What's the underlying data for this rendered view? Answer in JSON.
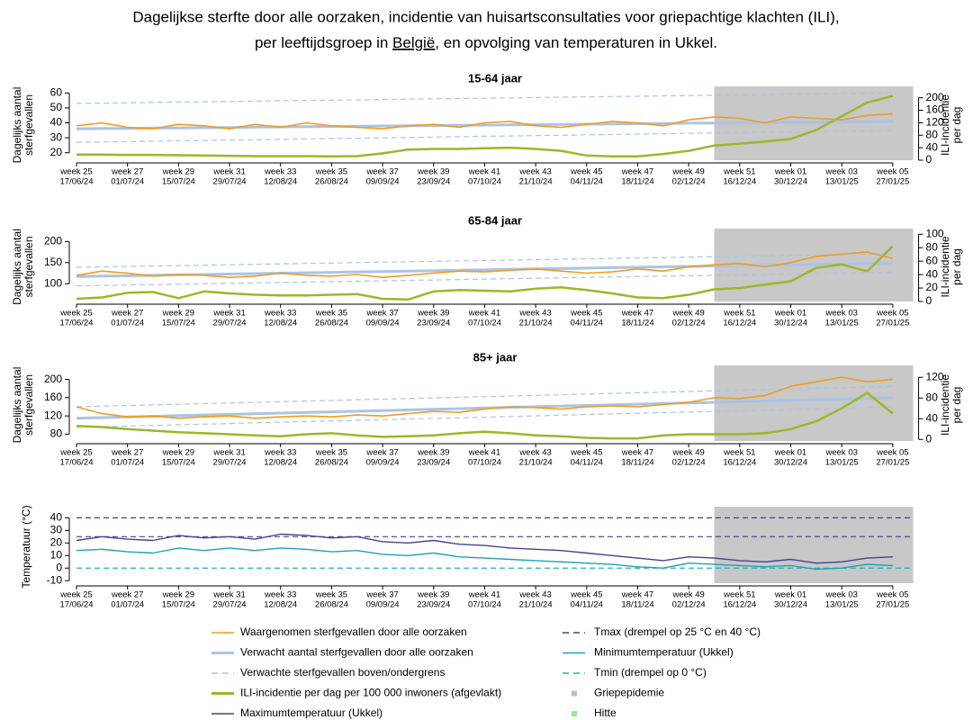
{
  "title_line1": "Dagelijkse sterfte door alle oorzaken, incidentie van huisartsconsultaties voor griepachtige klachten (ILI),",
  "title_line2": {
    "before": "per leeftijdsgroep in ",
    "link": "België",
    "after": ", en opvolging van temperaturen in Ukkel."
  },
  "epidemic_start_index": 25,
  "epidemic_color": "#c8c8c8",
  "chart_data": [
    {
      "type": "line",
      "title": "15-64 jaar",
      "ylabel": [
        "Dagelijks aantal",
        "sterfgevallen"
      ],
      "y2label": [
        "ILI-incidentie",
        "per dag"
      ],
      "categories": [
        "week 25",
        null,
        "week 27",
        null,
        "week 29",
        null,
        "week 31",
        null,
        "week 33",
        null,
        "week 35",
        null,
        "week 37",
        null,
        "week 39",
        null,
        "week 41",
        null,
        "week 43",
        null,
        "week 45",
        null,
        "week 47",
        null,
        "week 49",
        null,
        "week 51",
        null,
        "week 01",
        null,
        "week 03",
        null,
        "week 05"
      ],
      "dates": [
        "17/06/24",
        null,
        "01/07/24",
        null,
        "15/07/24",
        null,
        "29/07/24",
        null,
        "12/08/24",
        null,
        "26/08/24",
        null,
        "09/09/24",
        null,
        "23/09/24",
        null,
        "07/10/24",
        null,
        "21/10/24",
        null,
        "04/11/24",
        null,
        "18/11/24",
        null,
        "02/12/24",
        null,
        "16/12/24",
        null,
        "30/12/24",
        null,
        "13/01/25",
        null,
        "27/01/25"
      ],
      "ylim": [
        15,
        62
      ],
      "yticks": [
        20,
        30,
        40,
        50,
        60
      ],
      "y2lim": [
        0,
        225
      ],
      "y2ticks": [
        0,
        40,
        80,
        120,
        160,
        200
      ],
      "series": [
        {
          "color": "#a9c4e6",
          "dash": true,
          "values": [
            53,
            53.2,
            53.4,
            53.7,
            53.9,
            54.1,
            54.3,
            54.5,
            54.8,
            55,
            55.2,
            55.4,
            55.6,
            55.9,
            56.1,
            56.3,
            56.5,
            56.7,
            57,
            57.2,
            57.4,
            57.6,
            57.8,
            58.1,
            58.3,
            58.5,
            58.7,
            58.9,
            59.2,
            59.4,
            59.6,
            59.8,
            60
          ]
        },
        {
          "color": "#a9c4e6",
          "dash": true,
          "values": [
            27,
            27.2,
            27.5,
            27.7,
            28,
            28.2,
            28.5,
            28.7,
            29,
            29.2,
            29.5,
            29.7,
            30,
            30.2,
            30.5,
            30.7,
            31,
            31.2,
            31.5,
            31.7,
            32,
            32.2,
            32.5,
            32.7,
            33,
            33.2,
            33.5,
            33.7,
            34,
            34.2,
            34.5,
            34.7,
            35
          ]
        },
        {
          "color": "#a9c4e6",
          "width": 3,
          "values": [
            36,
            36.2,
            36.3,
            36.5,
            36.6,
            36.8,
            36.9,
            37.1,
            37.3,
            37.4,
            37.6,
            37.7,
            37.9,
            38,
            38.2,
            38.3,
            38.5,
            38.7,
            38.8,
            39,
            39.1,
            39.3,
            39.4,
            39.6,
            39.8,
            39.9,
            40.1,
            40.2,
            40.4,
            40.5,
            40.7,
            40.8,
            41
          ]
        },
        {
          "color": "#99b927",
          "width": 2.5,
          "axis": "y2",
          "values": [
            18,
            18,
            17,
            17,
            16,
            15,
            14,
            13,
            13,
            13,
            12,
            13,
            22,
            34,
            36,
            36,
            38,
            40,
            36,
            30,
            15,
            12,
            12,
            20,
            30,
            47,
            53,
            60,
            68,
            97,
            141,
            185,
            206
          ]
        },
        {
          "color": "#f29b1d",
          "width": 1.6,
          "values": [
            38,
            40,
            37,
            36,
            39,
            38,
            36,
            39,
            37,
            40,
            38,
            37,
            36,
            38,
            39,
            37,
            40,
            41,
            38,
            37,
            39,
            41,
            40,
            38,
            42,
            44,
            43,
            40,
            44,
            43,
            42,
            45,
            46
          ]
        }
      ]
    },
    {
      "type": "line",
      "title": "65-84 jaar",
      "ylabel": [
        "Dagelijks aantal",
        "sterfgevallen"
      ],
      "y2label": [
        "ILI-incidentie",
        "per dag"
      ],
      "categories": [
        "week 25",
        null,
        "week 27",
        null,
        "week 29",
        null,
        "week 31",
        null,
        "week 33",
        null,
        "week 35",
        null,
        "week 37",
        null,
        "week 39",
        null,
        "week 41",
        null,
        "week 43",
        null,
        "week 45",
        null,
        "week 47",
        null,
        "week 49",
        null,
        "week 51",
        null,
        "week 01",
        null,
        "week 03",
        null,
        "week 05"
      ],
      "dates": [
        "17/06/24",
        null,
        "01/07/24",
        null,
        "15/07/24",
        null,
        "29/07/24",
        null,
        "12/08/24",
        null,
        "26/08/24",
        null,
        "09/09/24",
        null,
        "23/09/24",
        null,
        "07/10/24",
        null,
        "21/10/24",
        null,
        "04/11/24",
        null,
        "18/11/24",
        null,
        "02/12/24",
        null,
        "16/12/24",
        null,
        "30/12/24",
        null,
        "13/01/25",
        null,
        "27/01/25"
      ],
      "ylim": [
        58,
        222
      ],
      "yticks": [
        100,
        150,
        200
      ],
      "y2lim": [
        0,
        103
      ],
      "y2ticks": [
        0,
        20,
        40,
        60,
        80,
        100
      ],
      "series": [
        {
          "color": "#a9c4e6",
          "dash": true,
          "values": [
            139,
            140,
            141,
            142,
            143,
            144,
            145,
            146,
            147,
            148,
            149,
            150,
            151,
            152,
            153,
            154,
            155,
            156,
            157,
            158,
            159,
            160,
            161,
            162,
            163,
            164,
            165,
            166,
            167,
            168,
            169,
            170,
            171
          ]
        },
        {
          "color": "#a9c4e6",
          "dash": true,
          "values": [
            95,
            96,
            97,
            98,
            99,
            100,
            101,
            102,
            103,
            104,
            105,
            106,
            107,
            108,
            109,
            110,
            111,
            112,
            113,
            114,
            115,
            116,
            117,
            118,
            119,
            120,
            121,
            122,
            123,
            124,
            125,
            126,
            127
          ]
        },
        {
          "color": "#a9c4e6",
          "width": 3,
          "values": [
            117,
            118,
            119,
            120,
            121,
            122,
            123,
            124,
            125,
            126,
            127,
            128,
            129,
            130,
            131,
            132,
            133,
            134,
            135,
            136,
            137,
            138,
            139,
            140,
            141,
            142,
            143,
            144,
            145,
            146,
            147,
            148,
            149
          ]
        },
        {
          "color": "#99b927",
          "width": 2.5,
          "axis": "y2",
          "values": [
            4,
            6,
            13,
            14,
            5,
            15,
            12,
            10,
            9,
            9,
            10,
            11,
            4,
            3,
            15,
            17,
            16,
            15,
            19,
            21,
            17,
            12,
            6,
            5,
            10,
            18,
            20,
            25,
            30,
            50,
            55,
            45,
            82
          ]
        },
        {
          "color": "#f29b1d",
          "width": 1.6,
          "values": [
            120,
            130,
            125,
            118,
            122,
            120,
            115,
            118,
            125,
            120,
            118,
            122,
            115,
            120,
            125,
            130,
            128,
            132,
            135,
            130,
            125,
            128,
            135,
            130,
            140,
            145,
            148,
            140,
            150,
            165,
            170,
            175,
            160
          ]
        }
      ]
    },
    {
      "type": "line",
      "title": "85+ jaar",
      "ylabel": [
        "Dagelijks aantal",
        "sterfgevallen"
      ],
      "y2label": [
        "ILI-incidentie",
        "per dag"
      ],
      "categories": [
        "week 25",
        null,
        "week 27",
        null,
        "week 29",
        null,
        "week 31",
        null,
        "week 33",
        null,
        "week 35",
        null,
        "week 37",
        null,
        "week 39",
        null,
        "week 41",
        null,
        "week 43",
        null,
        "week 45",
        null,
        "week 47",
        null,
        "week 49",
        null,
        "week 51",
        null,
        "week 01",
        null,
        "week 03",
        null,
        "week 05"
      ],
      "dates": [
        "17/06/24",
        null,
        "01/07/24",
        null,
        "15/07/24",
        null,
        "29/07/24",
        null,
        "12/08/24",
        null,
        "26/08/24",
        null,
        "09/09/24",
        null,
        "23/09/24",
        null,
        "07/10/24",
        null,
        "21/10/24",
        null,
        "04/11/24",
        null,
        "18/11/24",
        null,
        "02/12/24",
        null,
        "16/12/24",
        null,
        "30/12/24",
        null,
        "13/01/25",
        null,
        "27/01/25"
      ],
      "ylim": [
        65,
        223
      ],
      "yticks": [
        80,
        120,
        160,
        200
      ],
      "y2lim": [
        -3,
        136
      ],
      "y2ticks": [
        0,
        40,
        80,
        120
      ],
      "series": [
        {
          "color": "#a9c4e6",
          "dash": true,
          "values": [
            140,
            141.4,
            142.8,
            144.2,
            145.6,
            147,
            148.4,
            149.8,
            151.2,
            152.6,
            154,
            155.4,
            156.8,
            158.2,
            159.6,
            161,
            162.4,
            163.8,
            165.2,
            166.6,
            168,
            169.4,
            170.8,
            172.2,
            173.6,
            175,
            176.4,
            177.8,
            179.2,
            180.6,
            182,
            183.4,
            184.8
          ]
        },
        {
          "color": "#a9c4e6",
          "dash": true,
          "values": [
            95,
            96.4,
            97.8,
            99.2,
            100.6,
            102,
            103.4,
            104.8,
            106.2,
            107.6,
            109,
            110.4,
            111.8,
            113.2,
            114.6,
            116,
            117.4,
            118.8,
            120.2,
            121.6,
            123,
            124.4,
            125.8,
            127.2,
            128.6,
            130,
            131.4,
            132.8,
            134.2,
            135.6,
            137,
            138.4,
            139.8
          ]
        },
        {
          "color": "#a9c4e6",
          "width": 3,
          "values": [
            115,
            116.4,
            117.8,
            119.2,
            120.6,
            122,
            123.4,
            124.8,
            126.2,
            127.6,
            129,
            130.4,
            131.8,
            133.2,
            134.6,
            136,
            137.4,
            138.8,
            140.2,
            141.6,
            143,
            144.4,
            145.8,
            147.2,
            148.6,
            150,
            151.4,
            152.8,
            154.2,
            155.6,
            157,
            158.4,
            159.8
          ]
        },
        {
          "color": "#99b927",
          "width": 2.5,
          "axis": "y2",
          "values": [
            26,
            24,
            20,
            17,
            14,
            12,
            10,
            8,
            6,
            10,
            12,
            8,
            5,
            6,
            8,
            12,
            15,
            12,
            8,
            6,
            3,
            2,
            2,
            8,
            10,
            10,
            10,
            12,
            20,
            35,
            60,
            90,
            50
          ]
        },
        {
          "color": "#f29b1d",
          "width": 1.6,
          "values": [
            140,
            125,
            118,
            120,
            115,
            118,
            120,
            115,
            118,
            120,
            118,
            122,
            120,
            125,
            130,
            128,
            135,
            140,
            138,
            135,
            140,
            142,
            140,
            145,
            150,
            160,
            158,
            165,
            185,
            195,
            205,
            195,
            200
          ]
        }
      ]
    },
    {
      "type": "line",
      "ylabel": [
        "Temperatuur (°C)"
      ],
      "categories": [
        "week 25",
        null,
        "week 27",
        null,
        "week 29",
        null,
        "week 31",
        null,
        "week 33",
        null,
        "week 35",
        null,
        "week 37",
        null,
        "week 39",
        null,
        "week 41",
        null,
        "week 43",
        null,
        "week 45",
        null,
        "week 47",
        null,
        "week 49",
        null,
        "week 51",
        null,
        "week 01",
        null,
        "week 03",
        null,
        "week 05"
      ],
      "dates": [
        "17/06/24",
        null,
        "01/07/24",
        null,
        "15/07/24",
        null,
        "29/07/24",
        null,
        "12/08/24",
        null,
        "26/08/24",
        null,
        "09/09/24",
        null,
        "23/09/24",
        null,
        "07/10/24",
        null,
        "21/10/24",
        null,
        "04/11/24",
        null,
        "18/11/24",
        null,
        "02/12/24",
        null,
        "16/12/24",
        null,
        "30/12/24",
        null,
        "13/01/25",
        null,
        "27/01/25"
      ],
      "ylim": [
        -12,
        46
      ],
      "yticks": [
        -10,
        0,
        10,
        20,
        30,
        40
      ],
      "hlines": [
        {
          "value": 40,
          "color": "#4b3f8f"
        },
        {
          "value": 25,
          "color": "#4b3f8f"
        },
        {
          "value": 0,
          "color": "#1fb3b3"
        }
      ],
      "series": [
        {
          "color": "#4b3f8f",
          "width": 1.4,
          "values": [
            22,
            25,
            23,
            22,
            26,
            24,
            25,
            23,
            27,
            26,
            24,
            25,
            21,
            20,
            22,
            19,
            18,
            16,
            15,
            14,
            12,
            10,
            8,
            6,
            9,
            8,
            6,
            5,
            7,
            4,
            5,
            8,
            9
          ]
        },
        {
          "color": "#1aa3b3",
          "width": 1.4,
          "values": [
            14,
            15,
            13,
            12,
            16,
            14,
            16,
            14,
            16,
            15,
            13,
            14,
            11,
            10,
            12,
            9,
            8,
            7,
            6,
            5,
            4,
            3,
            1,
            0,
            4,
            3,
            2,
            1,
            2,
            -1,
            0,
            3,
            2
          ]
        }
      ]
    }
  ],
  "legend": [
    {
      "label": "Waargenomen sterfgevallen door alle oorzaken",
      "color": "#f29b1d",
      "style": "solid"
    },
    {
      "label": "Verwacht aantal sterfgevallen door alle oorzaken",
      "color": "#a9c4e6",
      "style": "thick"
    },
    {
      "label": "Verwachte sterfgevallen boven/ondergrens",
      "color": "#a9c4e6",
      "style": "dash"
    },
    {
      "label": "ILI-incidentie per dag per 100 000 inwoners (afgevlakt)",
      "color": "#99b927",
      "style": "thick"
    },
    {
      "label": "Maximumtemperatuur (Ukkel)",
      "color": "#4b3f8f",
      "style": "solid"
    },
    {
      "label": "Tmax (drempel op 25 °C en 40 °C)",
      "color": "#4b3f8f",
      "style": "dash"
    },
    {
      "label": "Minimumtemperatuur (Ukkel)",
      "color": "#1aa3b3",
      "style": "solid"
    },
    {
      "label": "Tmin (drempel op 0 °C)",
      "color": "#1fb3b3",
      "style": "dash"
    },
    {
      "label": "Griepepidemie",
      "color": "#bfbfbf",
      "style": "square"
    },
    {
      "label": "Hitte",
      "color": "#90ee90",
      "style": "square"
    }
  ]
}
